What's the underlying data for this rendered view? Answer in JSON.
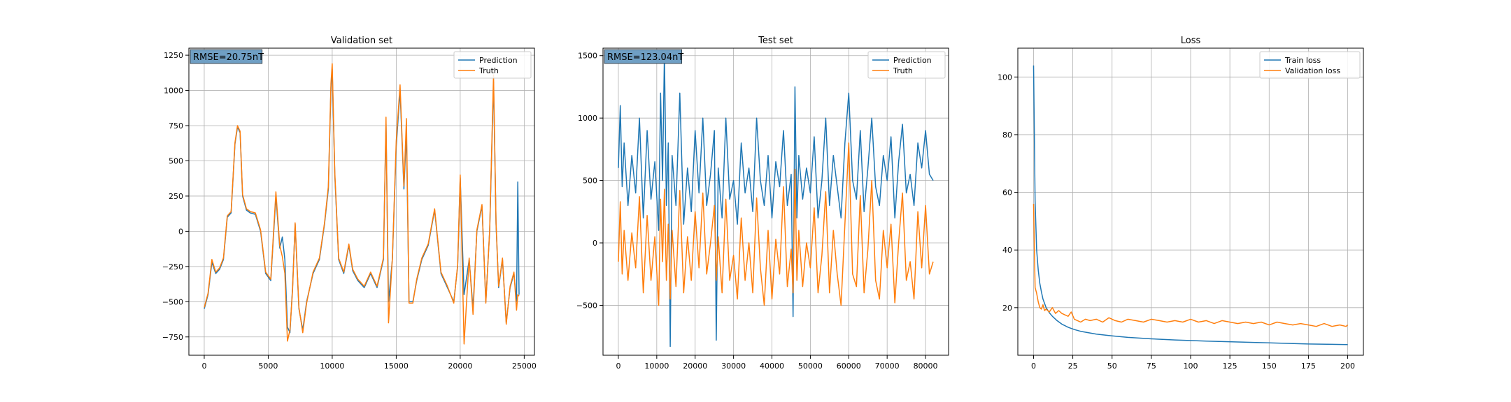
{
  "colors": {
    "prediction": "#1f77b4",
    "truth": "#ff7f0e",
    "grid": "#b0b0b0",
    "rmse_box": "#6f9fc4"
  },
  "chart_data": [
    {
      "type": "line",
      "title": "Validation set",
      "annotation": "RMSE=20.75nT",
      "legend": "top-right",
      "grid": true,
      "xlim": [
        -1200,
        25800
      ],
      "ylim": [
        -880,
        1300
      ],
      "xticks": [
        0,
        5000,
        10000,
        15000,
        20000,
        25000
      ],
      "xtick_labels": [
        "0",
        "5000",
        "10000",
        "15000",
        "20000",
        "25000"
      ],
      "yticks": [
        -750,
        -500,
        -250,
        0,
        250,
        500,
        750,
        1000,
        1250
      ],
      "ytick_labels": [
        "−750",
        "−500",
        "−250",
        "0",
        "250",
        "500",
        "750",
        "1000",
        "1250"
      ],
      "series": [
        {
          "name": "Prediction",
          "color_key": "prediction",
          "x": [
            0,
            300,
            600,
            900,
            1200,
            1500,
            1800,
            2100,
            2400,
            2600,
            2800,
            3000,
            3300,
            3600,
            4000,
            4400,
            4800,
            5200,
            5600,
            5900,
            6100,
            6300,
            6500,
            6700,
            6900,
            7100,
            7400,
            7700,
            8000,
            8500,
            9000,
            9400,
            9700,
            9900,
            10000,
            10200,
            10500,
            10900,
            11300,
            11600,
            12000,
            12500,
            13000,
            13500,
            14000,
            14200,
            14400,
            14700,
            15000,
            15300,
            15600,
            15800,
            16000,
            16300,
            16600,
            17000,
            17500,
            18000,
            18500,
            19000,
            19500,
            19800,
            20000,
            20300,
            20700,
            21000,
            21300,
            21700,
            22000,
            22300,
            22600,
            22800,
            23000,
            23300,
            23600,
            23900,
            24200,
            24400,
            24500,
            24600
          ],
          "y": [
            -550,
            -450,
            -220,
            -300,
            -270,
            -200,
            100,
            130,
            620,
            740,
            700,
            250,
            150,
            130,
            120,
            0,
            -300,
            -350,
            250,
            -120,
            -40,
            -200,
            -680,
            -720,
            -400,
            50,
            -550,
            -700,
            -500,
            -300,
            -200,
            50,
            300,
            1020,
            1150,
            400,
            -200,
            -300,
            -100,
            -280,
            -350,
            -400,
            -300,
            -400,
            -200,
            760,
            -500,
            -200,
            600,
            1000,
            300,
            700,
            -500,
            -500,
            -350,
            -200,
            -100,
            150,
            -300,
            -400,
            -500,
            -250,
            380,
            -450,
            -200,
            -550,
            0,
            180,
            -500,
            0,
            1060,
            50,
            -400,
            -200,
            -650,
            -400,
            -300,
            -500,
            350,
            -450
          ]
        },
        {
          "name": "Truth",
          "color_key": "truth",
          "x": [
            0,
            300,
            600,
            900,
            1200,
            1500,
            1800,
            2100,
            2400,
            2600,
            2800,
            3000,
            3300,
            3600,
            4000,
            4400,
            4800,
            5200,
            5600,
            5900,
            6100,
            6300,
            6500,
            6700,
            6900,
            7100,
            7400,
            7700,
            8000,
            8500,
            9000,
            9400,
            9700,
            9900,
            10000,
            10200,
            10500,
            10900,
            11300,
            11600,
            12000,
            12500,
            13000,
            13500,
            14000,
            14200,
            14400,
            14700,
            15000,
            15300,
            15600,
            15800,
            16000,
            16300,
            16600,
            17000,
            17500,
            18000,
            18500,
            19000,
            19500,
            19800,
            20000,
            20300,
            20700,
            21000,
            21300,
            21700,
            22000,
            22300,
            22600,
            22800,
            23000,
            23300,
            23600,
            23900,
            24200,
            24400,
            24500,
            24600
          ],
          "y": [
            -540,
            -440,
            -200,
            -290,
            -260,
            -190,
            110,
            140,
            630,
            750,
            710,
            260,
            160,
            140,
            130,
            10,
            -290,
            -340,
            280,
            -100,
            -180,
            -300,
            -780,
            -700,
            -420,
            60,
            -540,
            -720,
            -510,
            -290,
            -190,
            60,
            320,
            1050,
            1190,
            420,
            -190,
            -290,
            -90,
            -270,
            -340,
            -390,
            -290,
            -390,
            -190,
            810,
            -650,
            -190,
            640,
            1040,
            320,
            800,
            -510,
            -510,
            -340,
            -190,
            -90,
            160,
            -290,
            -390,
            -510,
            -240,
            400,
            -800,
            -190,
            -590,
            10,
            190,
            -510,
            10,
            1110,
            60,
            -390,
            -190,
            -660,
            -390,
            -290,
            -560,
            -450,
            -460
          ]
        }
      ]
    },
    {
      "type": "line",
      "title": "Test set",
      "annotation": "RMSE=123.04nT",
      "legend": "top-right",
      "grid": true,
      "xlim": [
        -4000,
        86000
      ],
      "ylim": [
        -900,
        1560
      ],
      "xticks": [
        0,
        10000,
        20000,
        30000,
        40000,
        50000,
        60000,
        70000,
        80000
      ],
      "xtick_labels": [
        "0",
        "10000",
        "20000",
        "30000",
        "40000",
        "50000",
        "60000",
        "70000",
        "80000"
      ],
      "yticks": [
        -500,
        0,
        500,
        1000,
        1500
      ],
      "ytick_labels": [
        "−500",
        "0",
        "500",
        "1000",
        "1500"
      ],
      "series": [
        {
          "name": "Prediction",
          "color_key": "prediction",
          "x": [
            0,
            500,
            1000,
            1500,
            2500,
            3500,
            4500,
            5500,
            6500,
            7500,
            8500,
            9500,
            10500,
            11000,
            11500,
            12000,
            12500,
            13000,
            13500,
            14000,
            15000,
            16000,
            17000,
            18000,
            19000,
            20000,
            21000,
            22000,
            23000,
            24000,
            25000,
            25500,
            26000,
            27000,
            28000,
            29000,
            30000,
            31000,
            32000,
            33000,
            34000,
            35000,
            36000,
            37000,
            38000,
            39000,
            40000,
            41000,
            42000,
            43000,
            44000,
            45000,
            45500,
            46000,
            46500,
            47000,
            48000,
            49000,
            50000,
            51000,
            52000,
            53000,
            54000,
            55000,
            56000,
            57000,
            58000,
            59000,
            60000,
            61000,
            62000,
            63000,
            64000,
            65000,
            66000,
            67000,
            68000,
            69000,
            70000,
            71000,
            72000,
            73000,
            74000,
            75000,
            76000,
            77000,
            78000,
            79000,
            80000,
            81000,
            82000
          ],
          "y": [
            600,
            1100,
            450,
            800,
            300,
            700,
            400,
            1000,
            200,
            900,
            350,
            650,
            100,
            1200,
            500,
            1520,
            300,
            800,
            -830,
            700,
            300,
            1200,
            150,
            600,
            250,
            900,
            400,
            1000,
            300,
            550,
            900,
            -780,
            600,
            200,
            1000,
            350,
            500,
            150,
            800,
            400,
            600,
            250,
            1000,
            500,
            300,
            700,
            200,
            650,
            450,
            900,
            300,
            550,
            -590,
            1250,
            200,
            700,
            350,
            600,
            400,
            850,
            200,
            500,
            1000,
            300,
            700,
            450,
            200,
            800,
            1200,
            500,
            350,
            900,
            250,
            600,
            1000,
            450,
            300,
            700,
            500,
            850,
            200,
            650,
            950,
            400,
            550,
            300,
            800,
            600,
            900,
            550,
            500
          ]
        },
        {
          "name": "Truth",
          "color_key": "truth",
          "x": [
            0,
            500,
            1000,
            1500,
            2500,
            3500,
            4500,
            5500,
            6500,
            7500,
            8500,
            9500,
            10500,
            11000,
            11500,
            12000,
            12500,
            13000,
            13500,
            14000,
            15000,
            16000,
            17000,
            18000,
            19000,
            20000,
            21000,
            22000,
            23000,
            24000,
            25000,
            25500,
            26000,
            27000,
            28000,
            29000,
            30000,
            31000,
            32000,
            33000,
            34000,
            35000,
            36000,
            37000,
            38000,
            39000,
            40000,
            41000,
            42000,
            43000,
            44000,
            45000,
            45500,
            46000,
            46500,
            47000,
            48000,
            49000,
            50000,
            51000,
            52000,
            53000,
            54000,
            55000,
            56000,
            57000,
            58000,
            59000,
            60000,
            61000,
            62000,
            63000,
            64000,
            65000,
            66000,
            67000,
            68000,
            69000,
            70000,
            71000,
            72000,
            73000,
            74000,
            75000,
            76000,
            77000,
            78000,
            79000,
            80000,
            81000,
            82000
          ],
          "y": [
            -150,
            330,
            -250,
            100,
            -300,
            80,
            -200,
            370,
            -400,
            220,
            -300,
            50,
            -500,
            350,
            -150,
            430,
            -300,
            150,
            -450,
            100,
            -350,
            420,
            -400,
            50,
            -300,
            250,
            -200,
            400,
            -250,
            0,
            300,
            -300,
            50,
            -400,
            350,
            -300,
            -100,
            -450,
            200,
            -300,
            0,
            -400,
            360,
            -200,
            -500,
            100,
            -450,
            30,
            -250,
            450,
            -350,
            -50,
            -400,
            590,
            -300,
            100,
            -350,
            0,
            -200,
            280,
            -400,
            -100,
            410,
            -400,
            100,
            -250,
            -500,
            150,
            800,
            -250,
            -350,
            380,
            -400,
            -50,
            500,
            -300,
            -450,
            100,
            -200,
            150,
            -480,
            0,
            400,
            -300,
            -150,
            -450,
            250,
            -200,
            300,
            -250,
            -150
          ]
        }
      ]
    },
    {
      "type": "line",
      "title": "Loss",
      "legend": "top-right",
      "grid": true,
      "xlim": [
        -10,
        210
      ],
      "ylim": [
        3.5,
        110
      ],
      "xticks": [
        0,
        25,
        50,
        75,
        100,
        125,
        150,
        175,
        200
      ],
      "xtick_labels": [
        "0",
        "25",
        "50",
        "75",
        "100",
        "125",
        "150",
        "175",
        "200"
      ],
      "yticks": [
        20,
        40,
        60,
        80,
        100
      ],
      "ytick_labels": [
        "20",
        "40",
        "60",
        "80",
        "100"
      ],
      "series": [
        {
          "name": "Train loss",
          "color_key": "prediction",
          "x": [
            0,
            1,
            2,
            3,
            4,
            5,
            6,
            8,
            10,
            12,
            15,
            18,
            22,
            26,
            30,
            40,
            50,
            60,
            75,
            90,
            110,
            130,
            150,
            175,
            200
          ],
          "y": [
            104,
            57,
            40,
            33,
            28.5,
            25.5,
            23,
            20,
            18.3,
            17,
            15.5,
            14.3,
            13.2,
            12.4,
            11.8,
            10.8,
            10.2,
            9.7,
            9.2,
            8.8,
            8.4,
            8.1,
            7.8,
            7.4,
            7.2
          ]
        },
        {
          "name": "Validation loss",
          "color_key": "truth",
          "x": [
            0,
            1,
            2,
            3,
            4,
            5,
            6,
            7,
            8,
            10,
            12,
            14,
            16,
            18,
            20,
            22,
            24,
            26,
            28,
            30,
            33,
            36,
            40,
            44,
            48,
            52,
            56,
            60,
            65,
            70,
            75,
            80,
            85,
            90,
            95,
            100,
            105,
            110,
            115,
            120,
            125,
            130,
            135,
            140,
            145,
            150,
            155,
            160,
            165,
            170,
            175,
            180,
            185,
            190,
            195,
            199,
            200
          ],
          "y": [
            56,
            27,
            25,
            22,
            20,
            19.5,
            21,
            19,
            19.5,
            18.5,
            20,
            18,
            19,
            18,
            17.5,
            17,
            18.5,
            16,
            15.5,
            15,
            16,
            15.5,
            16,
            15,
            16.5,
            15.5,
            15,
            16,
            15.5,
            15,
            16,
            15.5,
            15,
            15.5,
            15,
            16,
            15,
            15.5,
            14.5,
            15.5,
            15,
            14.5,
            15,
            14.5,
            15,
            14,
            15,
            14.5,
            14,
            14.5,
            14,
            13.5,
            14.5,
            13.5,
            14,
            13.5,
            14
          ]
        }
      ]
    }
  ]
}
